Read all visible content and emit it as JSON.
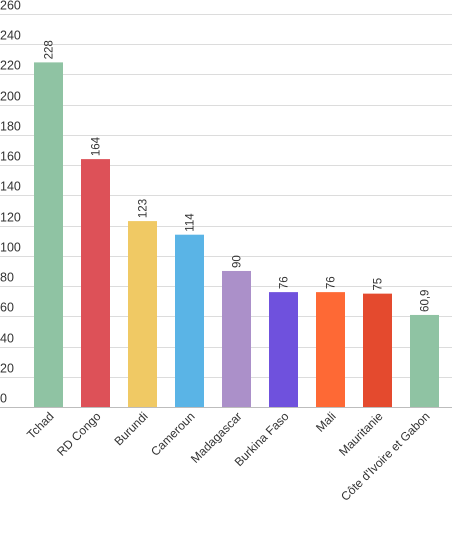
{
  "chart_data": {
    "type": "bar",
    "categories": [
      "Tchad",
      "RD Congo",
      "Burundi",
      "Cameroun",
      "Madagascar",
      "Burkina Faso",
      "Mali",
      "Mauritanie",
      "Côte d'Ivoire et Gabon"
    ],
    "values": [
      228,
      164,
      123,
      114,
      90,
      76,
      76,
      75,
      60.9
    ],
    "data_labels": [
      "228",
      "164",
      "123",
      "114",
      "90",
      "76",
      "76",
      "75",
      "60,9"
    ],
    "colors": [
      "#8fc3a3",
      "#dd5158",
      "#f0c964",
      "#5ab4e6",
      "#ab90c9",
      "#6f51dd",
      "#fe6935",
      "#e44a2e",
      "#8fc3a3"
    ],
    "y_ticks": [
      0,
      20,
      40,
      60,
      80,
      100,
      120,
      140,
      160,
      180,
      200,
      220,
      240,
      260
    ],
    "y_tick_labels": [
      "0",
      "20",
      "40",
      "60",
      "80",
      "100",
      "120",
      "140",
      "160",
      "180",
      "200",
      "220",
      "240",
      "260"
    ],
    "ylim": [
      0,
      260
    ],
    "grid": true,
    "legend": "none",
    "title": "",
    "xlabel": "",
    "ylabel": ""
  }
}
